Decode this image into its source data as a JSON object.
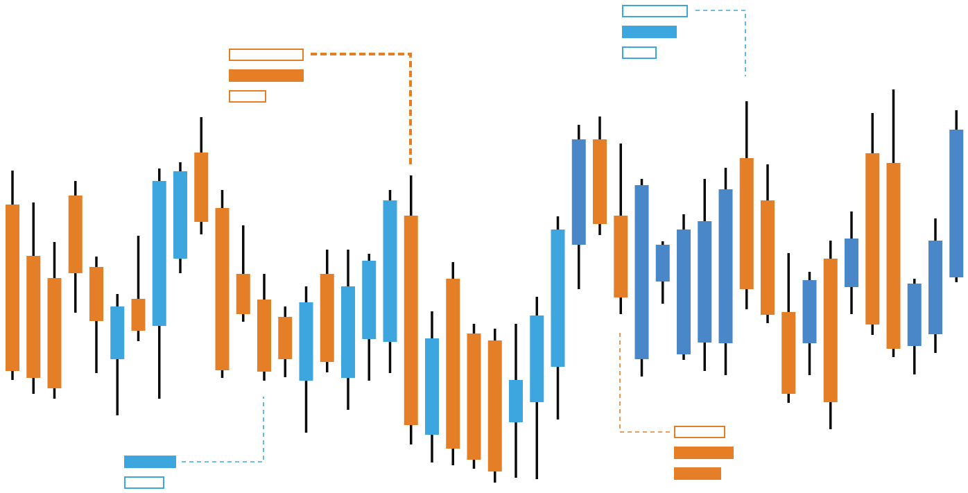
{
  "colors": {
    "up_light": "#3EA6DF",
    "up_dark": "#4A87C8",
    "down": "#E47E27",
    "wick": "#0a0a0a",
    "background": "#ffffff"
  },
  "chart_data": {
    "type": "candlestick",
    "title": "",
    "xlabel": "",
    "ylabel": "",
    "ylim": [
      0,
      711
    ],
    "grid": false,
    "legend": "none",
    "candles": [
      {
        "open": 416,
        "close": 176,
        "high": 465,
        "low": 163,
        "color": "down"
      },
      {
        "open": 342,
        "close": 166,
        "high": 419,
        "low": 143,
        "color": "down"
      },
      {
        "open": 310,
        "close": 151,
        "high": 362,
        "low": 136,
        "color": "down"
      },
      {
        "open": 429,
        "close": 317,
        "high": 450,
        "low": 260,
        "color": "down"
      },
      {
        "open": 326,
        "close": 248,
        "high": 341,
        "low": 173,
        "color": "down"
      },
      {
        "open": 193,
        "close": 269,
        "high": 287,
        "low": 112,
        "color": "up_light"
      },
      {
        "open": 280,
        "close": 234,
        "high": 371,
        "low": 219,
        "color": "down"
      },
      {
        "open": 241,
        "close": 450,
        "high": 468,
        "low": 136,
        "color": "up_light"
      },
      {
        "open": 338,
        "close": 464,
        "high": 477,
        "low": 317,
        "color": "up_light"
      },
      {
        "open": 491,
        "close": 391,
        "high": 542,
        "low": 373,
        "color": "down"
      },
      {
        "open": 411,
        "close": 177,
        "high": 437,
        "low": 166,
        "color": "down"
      },
      {
        "open": 316,
        "close": 258,
        "high": 386,
        "low": 247,
        "color": "down"
      },
      {
        "open": 279,
        "close": 175,
        "high": 316,
        "low": 162,
        "color": "down"
      },
      {
        "open": 254,
        "close": 193,
        "high": 269,
        "low": 167,
        "color": "down"
      },
      {
        "open": 162,
        "close": 275,
        "high": 298,
        "low": 87,
        "color": "up_light"
      },
      {
        "open": 316,
        "close": 189,
        "high": 351,
        "low": 174,
        "color": "down"
      },
      {
        "open": 166,
        "close": 298,
        "high": 351,
        "low": 120,
        "color": "up_light"
      },
      {
        "open": 222,
        "close": 335,
        "high": 345,
        "low": 162,
        "color": "up_light"
      },
      {
        "open": 218,
        "close": 422,
        "high": 437,
        "low": 173,
        "color": "up_light"
      },
      {
        "open": 400,
        "close": 98,
        "high": 458,
        "low": 70,
        "color": "down"
      },
      {
        "open": 84,
        "close": 223,
        "high": 262,
        "low": 44,
        "color": "up_light"
      },
      {
        "open": 309,
        "close": 64,
        "high": 333,
        "low": 40,
        "color": "down"
      },
      {
        "open": 230,
        "close": 48,
        "high": 244,
        "low": 35,
        "color": "down"
      },
      {
        "open": 220,
        "close": 31,
        "high": 237,
        "low": 15,
        "color": "down"
      },
      {
        "open": 102,
        "close": 163,
        "high": 244,
        "low": 22,
        "color": "up_light"
      },
      {
        "open": 131,
        "close": 256,
        "high": 283,
        "low": 20,
        "color": "up_light"
      },
      {
        "open": 182,
        "close": 380,
        "high": 399,
        "low": 106,
        "color": "up_light"
      },
      {
        "open": 358,
        "close": 510,
        "high": 531,
        "low": 294,
        "color": "up_dark"
      },
      {
        "open": 510,
        "close": 388,
        "high": 543,
        "low": 372,
        "color": "down"
      },
      {
        "open": 400,
        "close": 282,
        "high": 504,
        "low": 258,
        "color": "down"
      },
      {
        "open": 193,
        "close": 444,
        "high": 453,
        "low": 168,
        "color": "up_dark"
      },
      {
        "open": 305,
        "close": 358,
        "high": 363,
        "low": 273,
        "color": "up_dark"
      },
      {
        "open": 200,
        "close": 380,
        "high": 402,
        "low": 192,
        "color": "up_dark"
      },
      {
        "open": 217,
        "close": 392,
        "high": 453,
        "low": 176,
        "color": "up_dark"
      },
      {
        "open": 216,
        "close": 438,
        "high": 469,
        "low": 170,
        "color": "up_dark"
      },
      {
        "open": 294,
        "close": 483,
        "high": 565,
        "low": 265,
        "color": "down"
      },
      {
        "open": 257,
        "close": 422,
        "high": 474,
        "low": 245,
        "color": "down"
      },
      {
        "open": 261,
        "close": 143,
        "high": 346,
        "low": 130,
        "color": "down"
      },
      {
        "open": 216,
        "close": 307,
        "high": 319,
        "low": 170,
        "color": "up_dark"
      },
      {
        "open": 131,
        "close": 338,
        "high": 364,
        "low": 92,
        "color": "down"
      },
      {
        "open": 297,
        "close": 367,
        "high": 406,
        "low": 258,
        "color": "up_dark"
      },
      {
        "open": 243,
        "close": 490,
        "high": 548,
        "low": 228,
        "color": "down"
      },
      {
        "open": 476,
        "close": 208,
        "high": 582,
        "low": 196,
        "color": "down"
      },
      {
        "open": 212,
        "close": 302,
        "high": 309,
        "low": 171,
        "color": "up_dark"
      },
      {
        "open": 229,
        "close": 364,
        "high": 396,
        "low": 202,
        "color": "up_dark"
      },
      {
        "open": 311,
        "close": 524,
        "high": 552,
        "low": 304,
        "color": "up_dark"
      }
    ],
    "annotations": [
      {
        "color": "down",
        "dash": "thick",
        "boxes": [
          "outline",
          "filled",
          "outline"
        ],
        "box_widths": [
          108,
          108,
          54
        ],
        "box_left": 330,
        "box_top": 70,
        "path": [
          [
            448,
            78
          ],
          [
            592,
            78
          ],
          [
            592,
            238
          ]
        ]
      },
      {
        "color": "up_light",
        "dash": "thin",
        "boxes": [
          "outline",
          "filled",
          "outline"
        ],
        "box_widths": [
          95,
          79,
          50
        ],
        "box_left": 897,
        "box_top": 7,
        "path": [
          [
            1003,
            15
          ],
          [
            1075,
            15
          ],
          [
            1075,
            110
          ]
        ]
      },
      {
        "color": "up_light",
        "dash": "thin",
        "boxes": [
          "filled",
          "outline"
        ],
        "box_widths": [
          75,
          58
        ],
        "box_left": 179,
        "box_top": 657,
        "path": [
          [
            262,
            666
          ],
          [
            380,
            666
          ],
          [
            380,
            572
          ]
        ]
      },
      {
        "color": "down",
        "dash": "thin",
        "boxes": [
          "outline",
          "filled",
          "filled"
        ],
        "box_widths": [
          74,
          86,
          68
        ],
        "box_left": 972,
        "box_top": 614,
        "path": [
          [
            966,
            623
          ],
          [
            894,
            623
          ],
          [
            894,
            478
          ]
        ]
      }
    ]
  }
}
